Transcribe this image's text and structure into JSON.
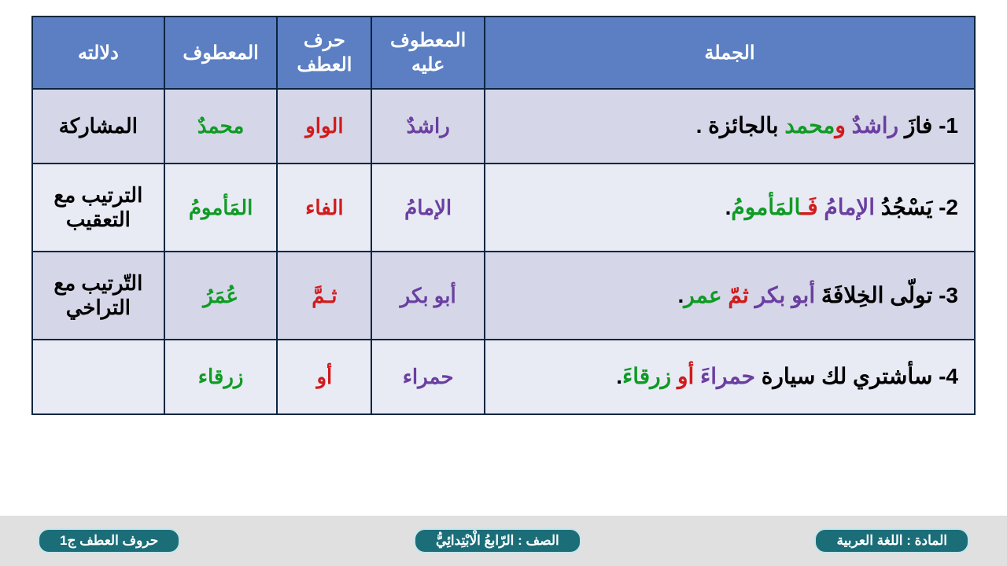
{
  "colors": {
    "header_bg": "#5b7fc2",
    "border": "#0a2540",
    "row_a": "#d5d6e7",
    "row_b": "#e8eaf4",
    "footer_bg": "#e0e0e0",
    "pill_bg": "#1b6d78",
    "pill_border": "#c9e4e8",
    "purple": "#6a3fa0",
    "red": "#d11b1b",
    "green": "#0f9b24",
    "black": "#000000"
  },
  "headers": {
    "sentence": "الجملة",
    "upon": "المعطوف عليه",
    "harf": "حرف العطف",
    "matoof": "المعطوف",
    "meaning": "دلالته"
  },
  "rows": [
    {
      "n": "1",
      "sentence": [
        {
          "t": "1- فازَ ",
          "c": "black"
        },
        {
          "t": "راشدٌ ",
          "c": "purple"
        },
        {
          "t": "و",
          "c": "red"
        },
        {
          "t": "محمد ",
          "c": "green"
        },
        {
          "t": "بالجائزة .",
          "c": "black"
        }
      ],
      "upon": "راشدٌ",
      "harf": "الواو",
      "matoof": "محمدٌ",
      "meaning": "المشاركة"
    },
    {
      "n": "2",
      "sentence": [
        {
          "t": "2- يَسْجُدُ ",
          "c": "black"
        },
        {
          "t": "الإمامُ ",
          "c": "purple"
        },
        {
          "t": "فَـ",
          "c": "red"
        },
        {
          "t": "المَأمومُ",
          "c": "green"
        },
        {
          "t": ".",
          "c": "black"
        }
      ],
      "upon": "الإمامُ",
      "harf": "الفاء",
      "matoof": "المَأمومُ",
      "meaning": "الترتيب مع التعقيب"
    },
    {
      "n": "3",
      "sentence": [
        {
          "t": "3- تولّى الخِلافَةَ ",
          "c": "black"
        },
        {
          "t": "أبو بكر ",
          "c": "purple"
        },
        {
          "t": "ثمّ ",
          "c": "red"
        },
        {
          "t": "عمر",
          "c": "green"
        },
        {
          "t": ".",
          "c": "black"
        }
      ],
      "upon": "أبو بكر",
      "harf": "ثـمَّ",
      "matoof": "عُمَرُ",
      "meaning": "التّرتيب مع التراخي"
    },
    {
      "n": "4",
      "sentence": [
        {
          "t": "4- سأشتري لك سيارة ",
          "c": "black"
        },
        {
          "t": "حمراءَ ",
          "c": "purple"
        },
        {
          "t": "أو ",
          "c": "red"
        },
        {
          "t": "زرقاءَ",
          "c": "green"
        },
        {
          "t": ".",
          "c": "black"
        }
      ],
      "upon": "حمراء",
      "harf": "أو",
      "matoof": "زرقاء",
      "meaning": ""
    }
  ],
  "footer": {
    "subject": "المادة : اللغة العربية",
    "grade": "الصف : الرّابعُ الْابْتِدائِيُّ",
    "lesson": "حروف العطف ج1"
  },
  "styling": {
    "header_fontsize": 24,
    "cell_fontsize": 26,
    "sentence_fontsize": 28,
    "pill_fontsize": 17,
    "table_border_width": 2
  }
}
